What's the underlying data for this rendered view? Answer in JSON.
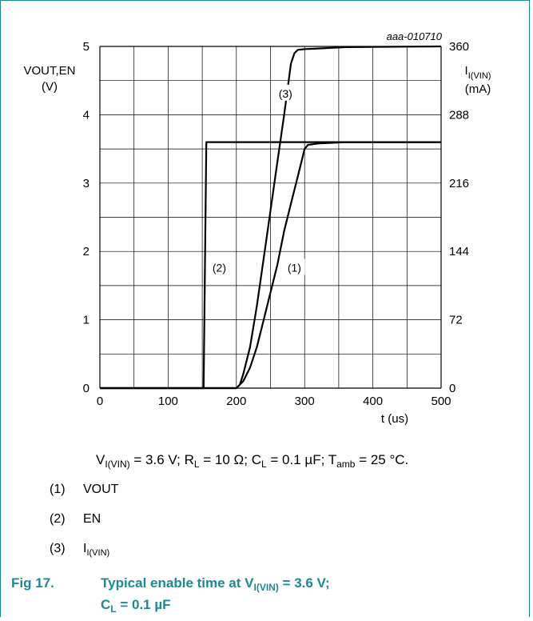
{
  "chart_data": {
    "type": "line",
    "code": "aaa-010710",
    "xlabel": "t (us)",
    "ylabel_left": {
      "name": "VOUT,EN",
      "unit": "(V)"
    },
    "ylabel_right": {
      "base": "I",
      "sub": "I(VIN)",
      "unit": "(mA)"
    },
    "xlim": [
      0,
      500
    ],
    "ylim_left": [
      0,
      5
    ],
    "ylim_right": [
      0,
      360
    ],
    "x_ticks": [
      "0",
      "100",
      "200",
      "300",
      "400",
      "500"
    ],
    "y_ticks_left": [
      "0",
      "1",
      "2",
      "3",
      "4",
      "5"
    ],
    "y_ticks_right": [
      "0",
      "72",
      "144",
      "216",
      "288",
      "360"
    ],
    "grid": true,
    "series": [
      {
        "name": "(1)",
        "axis": "left",
        "x": [
          0,
          200,
          210,
          220,
          230,
          240,
          250,
          260,
          270,
          280,
          290,
          300,
          305,
          320,
          360,
          400,
          500
        ],
        "y": [
          0,
          0,
          0.1,
          0.3,
          0.6,
          1.0,
          1.4,
          1.8,
          2.3,
          2.7,
          3.1,
          3.5,
          3.56,
          3.58,
          3.6,
          3.6,
          3.6
        ]
      },
      {
        "name": "(2)",
        "axis": "left",
        "x": [
          0,
          152,
          156,
          500
        ],
        "y": [
          0,
          0,
          3.6,
          3.6
        ]
      },
      {
        "name": "(3)",
        "axis": "left",
        "x": [
          0,
          200,
          205,
          210,
          220,
          230,
          240,
          250,
          260,
          270,
          280,
          285,
          290,
          300,
          320,
          360,
          500
        ],
        "y": [
          0,
          0,
          0.05,
          0.2,
          0.6,
          1.2,
          1.9,
          2.6,
          3.3,
          4.0,
          4.75,
          4.9,
          4.95,
          4.96,
          4.97,
          4.99,
          5.0
        ]
      }
    ],
    "annotations": [
      {
        "text": "(1)",
        "x": 285,
        "y": 1.75
      },
      {
        "text": "(2)",
        "x": 175,
        "y": 1.75
      },
      {
        "text": "(3)",
        "x": 272,
        "y": 4.3
      }
    ]
  },
  "caption": {
    "v": "V",
    "v_sub": "I(VIN)",
    "v_val": " = 3.6 V; R",
    "r_sub": "L",
    "r_val": " = 10 Ω; C",
    "c_sub": "L",
    "c_val": " = 0.1 µF; T",
    "t_sub": "amb",
    "t_val": " = 25 °C."
  },
  "notes": [
    {
      "num": "(1)",
      "text": "VOUT",
      "sub": ""
    },
    {
      "num": "(2)",
      "text": "EN",
      "sub": ""
    },
    {
      "num": "(3)",
      "text": "I",
      "sub": "I(VIN)"
    }
  ],
  "figure": {
    "label": "Fig 17.",
    "line1_a": "Typical enable time at V",
    "line1_sub": "I(VIN)",
    "line1_b": " = 3.6 V;",
    "line2_a": "C",
    "line2_sub": "L",
    "line2_b": " = 0.1 µF"
  },
  "colors": {
    "frame": "#1b8a96",
    "title": "#1b8a96",
    "grid": "#000000",
    "line": "#000000"
  }
}
